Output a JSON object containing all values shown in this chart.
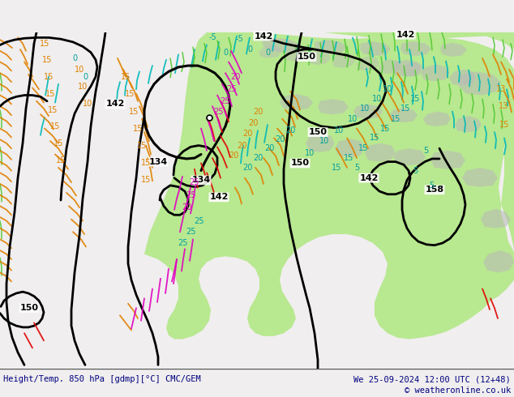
{
  "title_left": "Height/Temp. 850 hPa [gdmp][°C] CMC/GEM",
  "title_right": "We 25-09-2024 12:00 UTC (12+48)",
  "copyright": "© weatheronline.co.uk",
  "bg_color_light": "#f0eeee",
  "green_fill": "#b8e890",
  "gray_fill": "#b8b8b8",
  "white_fill": "#f4f2f2",
  "black_contour": "#000000",
  "cyan_color": "#00b8b8",
  "teal_color": "#00a0a0",
  "orange_color": "#e08000",
  "red_color": "#e00000",
  "magenta_color": "#e000c0",
  "lime_color": "#50c830",
  "navy": "#000080",
  "fig_width": 6.34,
  "fig_height": 4.9,
  "dpi": 100
}
